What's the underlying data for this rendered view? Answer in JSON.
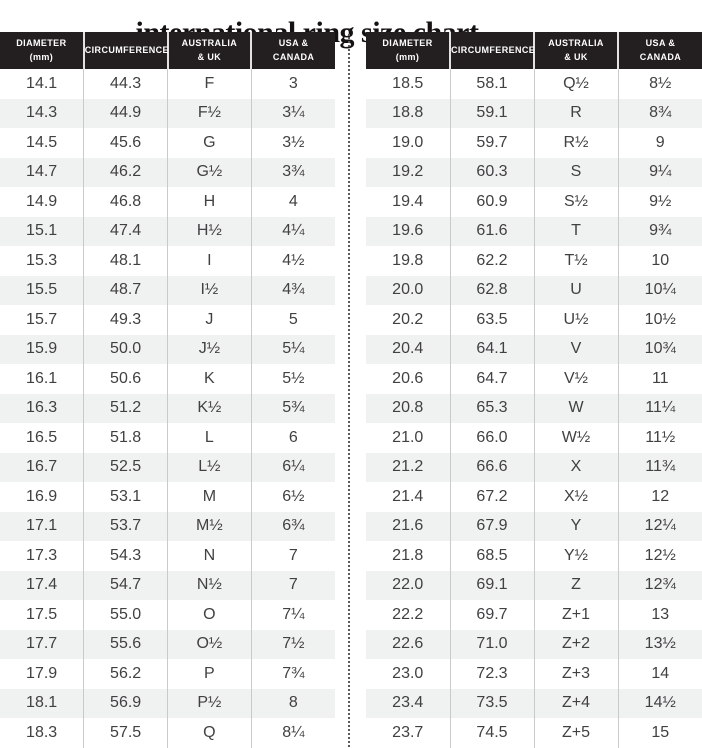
{
  "title": "international ring size chart",
  "colors": {
    "header_bg": "#231f20",
    "header_text": "#ffffff",
    "row_alt": "#f0f1f1",
    "body_text": "#414042",
    "column_line": "#c9cacb",
    "divider": "#58595b"
  },
  "chart_data": {
    "type": "table",
    "title": "international ring size chart",
    "columns": [
      "DIAMETER\n(mm)",
      "CIRCUMFERENCE",
      "AUSTRALIA\n& UK",
      "USA &\nCANADA"
    ],
    "left_table_rows": [
      [
        "14.1",
        "44.3",
        "F",
        "3"
      ],
      [
        "14.3",
        "44.9",
        "F½",
        "3¼"
      ],
      [
        "14.5",
        "45.6",
        "G",
        "3½"
      ],
      [
        "14.7",
        "46.2",
        "G½",
        "3¾"
      ],
      [
        "14.9",
        "46.8",
        "H",
        "4"
      ],
      [
        "15.1",
        "47.4",
        "H½",
        "4¼"
      ],
      [
        "15.3",
        "48.1",
        "I",
        "4½"
      ],
      [
        "15.5",
        "48.7",
        "I½",
        "4¾"
      ],
      [
        "15.7",
        "49.3",
        "J",
        "5"
      ],
      [
        "15.9",
        "50.0",
        "J½",
        "5¼"
      ],
      [
        "16.1",
        "50.6",
        "K",
        "5½"
      ],
      [
        "16.3",
        "51.2",
        "K½",
        "5¾"
      ],
      [
        "16.5",
        "51.8",
        "L",
        "6"
      ],
      [
        "16.7",
        "52.5",
        "L½",
        "6¼"
      ],
      [
        "16.9",
        "53.1",
        "M",
        "6½"
      ],
      [
        "17.1",
        "53.7",
        "M½",
        "6¾"
      ],
      [
        "17.3",
        "54.3",
        "N",
        "7"
      ],
      [
        "17.4",
        "54.7",
        "N½",
        "7"
      ],
      [
        "17.5",
        "55.0",
        "O",
        "7¼"
      ],
      [
        "17.7",
        "55.6",
        "O½",
        "7½"
      ],
      [
        "17.9",
        "56.2",
        "P",
        "7¾"
      ],
      [
        "18.1",
        "56.9",
        "P½",
        "8"
      ],
      [
        "18.3",
        "57.5",
        "Q",
        "8¼"
      ]
    ],
    "right_table_rows": [
      [
        "18.5",
        "58.1",
        "Q½",
        "8½"
      ],
      [
        "18.8",
        "59.1",
        "R",
        "8¾"
      ],
      [
        "19.0",
        "59.7",
        "R½",
        "9"
      ],
      [
        "19.2",
        "60.3",
        "S",
        "9¼"
      ],
      [
        "19.4",
        "60.9",
        "S½",
        "9½"
      ],
      [
        "19.6",
        "61.6",
        "T",
        "9¾"
      ],
      [
        "19.8",
        "62.2",
        "T½",
        "10"
      ],
      [
        "20.0",
        "62.8",
        "U",
        "10¼"
      ],
      [
        "20.2",
        "63.5",
        "U½",
        "10½"
      ],
      [
        "20.4",
        "64.1",
        "V",
        "10¾"
      ],
      [
        "20.6",
        "64.7",
        "V½",
        "11"
      ],
      [
        "20.8",
        "65.3",
        "W",
        "11¼"
      ],
      [
        "21.0",
        "66.0",
        "W½",
        "11½"
      ],
      [
        "21.2",
        "66.6",
        "X",
        "11¾"
      ],
      [
        "21.4",
        "67.2",
        "X½",
        "12"
      ],
      [
        "21.6",
        "67.9",
        "Y",
        "12¼"
      ],
      [
        "21.8",
        "68.5",
        "Y½",
        "12½"
      ],
      [
        "22.0",
        "69.1",
        "Z",
        "12¾"
      ],
      [
        "22.2",
        "69.7",
        "Z+1",
        "13"
      ],
      [
        "22.6",
        "71.0",
        "Z+2",
        "13½"
      ],
      [
        "23.0",
        "72.3",
        "Z+3",
        "14"
      ],
      [
        "23.4",
        "73.5",
        "Z+4",
        "14½"
      ],
      [
        "23.7",
        "74.5",
        "Z+5",
        "15"
      ]
    ]
  }
}
